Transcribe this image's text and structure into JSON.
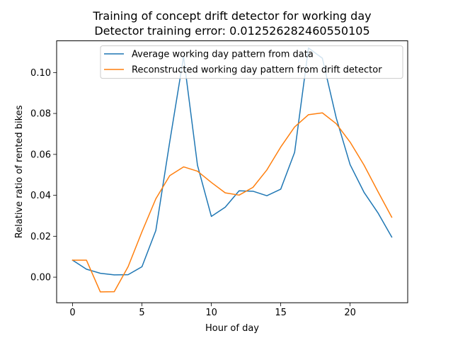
{
  "chart_data": {
    "type": "line",
    "title_line1": "Training of concept drift detector for working day",
    "title_line2": "Detector training error: 0.012526282460550105",
    "xlabel": "Hour of day",
    "ylabel": "Relative ratio of rented bikes",
    "xlim": [
      -1.15,
      24.15
    ],
    "ylim": [
      -0.0125,
      0.1155
    ],
    "xticks": [
      {
        "value": 0,
        "label": "0"
      },
      {
        "value": 5,
        "label": "5"
      },
      {
        "value": 10,
        "label": "10"
      },
      {
        "value": 15,
        "label": "15"
      },
      {
        "value": 20,
        "label": "20"
      }
    ],
    "yticks": [
      {
        "value": 0.0,
        "label": "0.00"
      },
      {
        "value": 0.02,
        "label": "0.02"
      },
      {
        "value": 0.04,
        "label": "0.04"
      },
      {
        "value": 0.06,
        "label": "0.06"
      },
      {
        "value": 0.08,
        "label": "0.08"
      },
      {
        "value": 0.1,
        "label": "0.10"
      }
    ],
    "grid": false,
    "legend_position": "upper-right",
    "x": [
      0,
      1,
      2,
      3,
      4,
      5,
      6,
      7,
      8,
      9,
      10,
      11,
      12,
      13,
      14,
      15,
      16,
      17,
      18,
      19,
      20,
      21,
      22,
      23
    ],
    "series": [
      {
        "name": "Average working day pattern from data",
        "color": "#1f77b4",
        "values": [
          0.0083,
          0.0039,
          0.0019,
          0.0011,
          0.0012,
          0.0051,
          0.0228,
          0.0661,
          0.1077,
          0.0547,
          0.0297,
          0.0342,
          0.0422,
          0.042,
          0.0398,
          0.043,
          0.061,
          0.112,
          0.107,
          0.0778,
          0.055,
          0.0415,
          0.0315,
          0.0196
        ]
      },
      {
        "name": "Reconstructed working day pattern from drift detector",
        "color": "#ff7f0e",
        "values": [
          0.0083,
          0.0083,
          -0.0072,
          -0.0071,
          0.0051,
          0.0222,
          0.0383,
          0.0496,
          0.0539,
          0.0518,
          0.0463,
          0.0412,
          0.0401,
          0.0439,
          0.0524,
          0.0636,
          0.0734,
          0.0794,
          0.0803,
          0.075,
          0.066,
          0.0548,
          0.0419,
          0.0293
        ]
      }
    ]
  }
}
